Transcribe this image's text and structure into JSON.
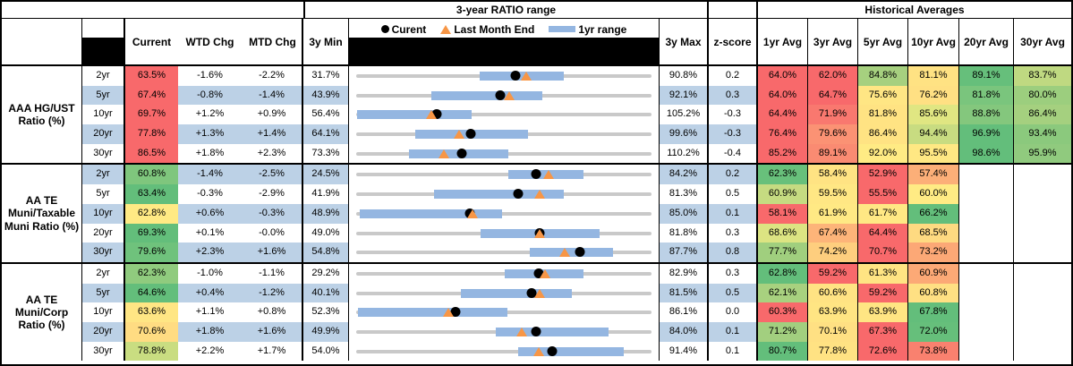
{
  "header": {
    "ratio_range_title": "3-year RATIO range",
    "historical_title": "Historical Averages",
    "col_current": "Current",
    "col_wtd": "WTD Chg",
    "col_mtd": "MTD Chg",
    "col_3y_min": "3y Min",
    "col_3y_max": "3y Max",
    "col_zscore": "z-score",
    "avg_cols": [
      "1yr Avg",
      "3yr Avg",
      "5yr Avg",
      "10yr Avg",
      "20yr Avg",
      "30yr Avg"
    ],
    "legend": {
      "current": "Curent",
      "last_month": "Last Month End",
      "range": "1yr range"
    }
  },
  "colors": {
    "stripe": "#BCD1E6",
    "bar": "#94B6E1",
    "track": "#C9C9C9",
    "marker_triangle": "#F79646",
    "marker_dot": "#000000",
    "heat_red": "#F8696B",
    "heat_yellow": "#FFEB84",
    "heat_green": "#63BE7B"
  },
  "groups": [
    {
      "label": "AAA HG/UST Ratio (%)",
      "rows": [
        {
          "tenor": "2yr",
          "striped": false,
          "current": "63.5%",
          "current_bg": "#F8696B",
          "wtd": "-1.6%",
          "mtd": "-2.2%",
          "min": "31.7%",
          "max": "90.8%",
          "z": "0.2",
          "chart": {
            "min": 31.7,
            "max": 90.8,
            "bar_lo": 56.3,
            "bar_hi": 73.2,
            "current": 63.5,
            "last_month": 65.7
          },
          "avgs": [
            {
              "v": "64.0%",
              "bg": "#F8696B"
            },
            {
              "v": "62.0%",
              "bg": "#F8696B"
            },
            {
              "v": "84.8%",
              "bg": "#A6D07F"
            },
            {
              "v": "81.1%",
              "bg": "#FFE283"
            },
            {
              "v": "89.1%",
              "bg": "#66BF7B"
            },
            {
              "v": "83.7%",
              "bg": "#BFD981"
            }
          ]
        },
        {
          "tenor": "5yr",
          "striped": true,
          "current": "67.4%",
          "current_bg": "#F8696B",
          "wtd": "-0.8%",
          "mtd": "-1.4%",
          "min": "43.9%",
          "max": "92.1%",
          "z": "0.3",
          "chart": {
            "min": 43.9,
            "max": 92.1,
            "bar_lo": 56.1,
            "bar_hi": 74.2,
            "current": 67.4,
            "last_month": 68.8
          },
          "avgs": [
            {
              "v": "64.0%",
              "bg": "#F8696B"
            },
            {
              "v": "64.7%",
              "bg": "#F8696B"
            },
            {
              "v": "75.6%",
              "bg": "#FFE684"
            },
            {
              "v": "76.2%",
              "bg": "#FFE083"
            },
            {
              "v": "81.8%",
              "bg": "#7AC57D"
            },
            {
              "v": "80.0%",
              "bg": "#9CCE7E"
            }
          ]
        },
        {
          "tenor": "10yr",
          "striped": false,
          "current": "69.7%",
          "current_bg": "#F8696B",
          "wtd": "+1.2%",
          "mtd": "+0.9%",
          "min": "56.4%",
          "max": "105.2%",
          "z": "-0.3",
          "chart": {
            "min": 56.4,
            "max": 105.2,
            "bar_lo": 56.5,
            "bar_hi": 75.4,
            "current": 69.7,
            "last_month": 68.8
          },
          "avgs": [
            {
              "v": "64.4%",
              "bg": "#F8696B"
            },
            {
              "v": "71.9%",
              "bg": "#F9786F"
            },
            {
              "v": "81.8%",
              "bg": "#FFE383"
            },
            {
              "v": "85.6%",
              "bg": "#E0E682"
            },
            {
              "v": "88.8%",
              "bg": "#84C77D"
            },
            {
              "v": "86.4%",
              "bg": "#A5D07F"
            }
          ]
        },
        {
          "tenor": "20yr",
          "striped": true,
          "current": "77.8%",
          "current_bg": "#F8696B",
          "wtd": "+1.3%",
          "mtd": "+1.4%",
          "min": "64.1%",
          "max": "99.6%",
          "z": "-0.3",
          "chart": {
            "min": 64.1,
            "max": 99.6,
            "bar_lo": 71.2,
            "bar_hi": 84.7,
            "current": 77.8,
            "last_month": 76.4
          },
          "avgs": [
            {
              "v": "76.4%",
              "bg": "#F8696B"
            },
            {
              "v": "79.6%",
              "bg": "#FB9274"
            },
            {
              "v": "86.4%",
              "bg": "#FFE383"
            },
            {
              "v": "94.4%",
              "bg": "#C8DC81"
            },
            {
              "v": "96.9%",
              "bg": "#63BE7B"
            },
            {
              "v": "93.4%",
              "bg": "#8BC97D"
            }
          ]
        },
        {
          "tenor": "30yr",
          "striped": false,
          "current": "86.5%",
          "current_bg": "#F8696B",
          "wtd": "+1.8%",
          "mtd": "+2.3%",
          "min": "73.3%",
          "max": "110.2%",
          "z": "-0.4",
          "chart": {
            "min": 73.3,
            "max": 110.2,
            "bar_lo": 79.9,
            "bar_hi": 92.2,
            "current": 86.5,
            "last_month": 84.2
          },
          "avgs": [
            {
              "v": "85.2%",
              "bg": "#F8696B"
            },
            {
              "v": "89.1%",
              "bg": "#FA8B72"
            },
            {
              "v": "92.0%",
              "bg": "#FFEB84"
            },
            {
              "v": "95.5%",
              "bg": "#FFE883"
            },
            {
              "v": "98.6%",
              "bg": "#63BE7B"
            },
            {
              "v": "95.9%",
              "bg": "#90CA7E"
            }
          ]
        }
      ]
    },
    {
      "label": "AA TE Muni/Taxable Muni Ratio (%)",
      "rows": [
        {
          "tenor": "2yr",
          "striped": true,
          "current": "60.8%",
          "current_bg": "#7FC67D",
          "wtd": "-1.4%",
          "mtd": "-2.5%",
          "min": "24.5%",
          "max": "84.2%",
          "z": "0.2",
          "chart": {
            "min": 24.5,
            "max": 84.2,
            "bar_lo": 55.1,
            "bar_hi": 70.3,
            "current": 60.8,
            "last_month": 63.3
          },
          "avgs": [
            {
              "v": "62.3%",
              "bg": "#68C07B"
            },
            {
              "v": "58.4%",
              "bg": "#FFE383"
            },
            {
              "v": "52.9%",
              "bg": "#F8696B"
            },
            {
              "v": "57.4%",
              "bg": "#FCAF78"
            },
            {
              "v": "",
              "bg": ""
            },
            {
              "v": "",
              "bg": ""
            }
          ]
        },
        {
          "tenor": "5yr",
          "striped": false,
          "current": "63.4%",
          "current_bg": "#63BE7B",
          "wtd": "-0.3%",
          "mtd": "-2.9%",
          "min": "41.9%",
          "max": "81.3%",
          "z": "0.5",
          "chart": {
            "min": 41.9,
            "max": 81.3,
            "bar_lo": 52.3,
            "bar_hi": 69.5,
            "current": 63.4,
            "last_month": 66.3
          },
          "avgs": [
            {
              "v": "60.9%",
              "bg": "#C5DB81"
            },
            {
              "v": "59.5%",
              "bg": "#FFE784"
            },
            {
              "v": "55.5%",
              "bg": "#F8696B"
            },
            {
              "v": "60.0%",
              "bg": "#FFEB84"
            },
            {
              "v": "",
              "bg": ""
            },
            {
              "v": "",
              "bg": ""
            }
          ]
        },
        {
          "tenor": "10yr",
          "striped": true,
          "current": "62.8%",
          "current_bg": "#FFEA84",
          "wtd": "+0.6%",
          "mtd": "-0.3%",
          "min": "48.9%",
          "max": "85.0%",
          "z": "0.1",
          "chart": {
            "min": 48.9,
            "max": 85.0,
            "bar_lo": 49.3,
            "bar_hi": 66.7,
            "current": 62.8,
            "last_month": 63.1
          },
          "avgs": [
            {
              "v": "58.1%",
              "bg": "#F8696B"
            },
            {
              "v": "61.9%",
              "bg": "#FFE984"
            },
            {
              "v": "61.7%",
              "bg": "#FFE884"
            },
            {
              "v": "66.2%",
              "bg": "#63BE7B"
            },
            {
              "v": "",
              "bg": ""
            },
            {
              "v": "",
              "bg": ""
            }
          ]
        },
        {
          "tenor": "20yr",
          "striped": false,
          "current": "69.3%",
          "current_bg": "#63BE7B",
          "wtd": "+0.1%",
          "mtd": "-0.0%",
          "min": "49.0%",
          "max": "81.8%",
          "z": "0.3",
          "chart": {
            "min": 49.0,
            "max": 81.8,
            "bar_lo": 62.8,
            "bar_hi": 76.0,
            "current": 69.3,
            "last_month": 69.3
          },
          "avgs": [
            {
              "v": "68.6%",
              "bg": "#DCE482"
            },
            {
              "v": "67.4%",
              "bg": "#FDB479"
            },
            {
              "v": "64.4%",
              "bg": "#F8696B"
            },
            {
              "v": "68.5%",
              "bg": "#FEDA81"
            },
            {
              "v": "",
              "bg": ""
            },
            {
              "v": "",
              "bg": ""
            }
          ]
        },
        {
          "tenor": "30yr",
          "striped": true,
          "current": "79.6%",
          "current_bg": "#6FC27C",
          "wtd": "+2.3%",
          "mtd": "+1.6%",
          "min": "54.8%",
          "max": "87.7%",
          "z": "0.8",
          "chart": {
            "min": 54.8,
            "max": 87.7,
            "bar_lo": 74.1,
            "bar_hi": 83.3,
            "current": 79.6,
            "last_month": 78.0
          },
          "avgs": [
            {
              "v": "77.7%",
              "bg": "#A0CF7E"
            },
            {
              "v": "74.2%",
              "bg": "#FECE7E"
            },
            {
              "v": "70.7%",
              "bg": "#F8696B"
            },
            {
              "v": "73.2%",
              "bg": "#FCA876"
            },
            {
              "v": "",
              "bg": ""
            },
            {
              "v": "",
              "bg": ""
            }
          ]
        }
      ]
    },
    {
      "label": "AA TE Muni/Corp Ratio (%)",
      "rows": [
        {
          "tenor": "2yr",
          "striped": false,
          "current": "62.3%",
          "current_bg": "#90CB7E",
          "wtd": "-1.0%",
          "mtd": "-1.1%",
          "min": "29.2%",
          "max": "82.9%",
          "z": "0.3",
          "chart": {
            "min": 29.2,
            "max": 82.9,
            "bar_lo": 56.2,
            "bar_hi": 70.4,
            "current": 62.3,
            "last_month": 63.4
          },
          "avgs": [
            {
              "v": "62.8%",
              "bg": "#63BE7B"
            },
            {
              "v": "59.2%",
              "bg": "#F8696B"
            },
            {
              "v": "61.3%",
              "bg": "#FFE483"
            },
            {
              "v": "60.9%",
              "bg": "#FCA976"
            },
            {
              "v": "",
              "bg": ""
            },
            {
              "v": "",
              "bg": ""
            }
          ]
        },
        {
          "tenor": "5yr",
          "striped": true,
          "current": "64.6%",
          "current_bg": "#63BE7B",
          "wtd": "+0.4%",
          "mtd": "-1.2%",
          "min": "40.1%",
          "max": "81.5%",
          "z": "0.5",
          "chart": {
            "min": 40.1,
            "max": 81.5,
            "bar_lo": 54.7,
            "bar_hi": 70.3,
            "current": 64.6,
            "last_month": 65.8
          },
          "avgs": [
            {
              "v": "62.1%",
              "bg": "#A8D17F"
            },
            {
              "v": "60.6%",
              "bg": "#FFE383"
            },
            {
              "v": "59.2%",
              "bg": "#F8696B"
            },
            {
              "v": "60.8%",
              "bg": "#FFE083"
            },
            {
              "v": "",
              "bg": ""
            },
            {
              "v": "",
              "bg": ""
            }
          ]
        },
        {
          "tenor": "10yr",
          "striped": false,
          "current": "63.6%",
          "current_bg": "#FFE684",
          "wtd": "+1.1%",
          "mtd": "+0.8%",
          "min": "52.3%",
          "max": "86.1%",
          "z": "0.0",
          "chart": {
            "min": 52.3,
            "max": 86.1,
            "bar_lo": 52.5,
            "bar_hi": 69.6,
            "current": 63.6,
            "last_month": 62.8
          },
          "avgs": [
            {
              "v": "60.3%",
              "bg": "#F8696B"
            },
            {
              "v": "63.9%",
              "bg": "#FFE583"
            },
            {
              "v": "63.9%",
              "bg": "#FFE583"
            },
            {
              "v": "67.8%",
              "bg": "#63BE7B"
            },
            {
              "v": "",
              "bg": ""
            },
            {
              "v": "",
              "bg": ""
            }
          ]
        },
        {
          "tenor": "20yr",
          "striped": true,
          "current": "70.6%",
          "current_bg": "#FFDC82",
          "wtd": "+1.8%",
          "mtd": "+1.6%",
          "min": "49.9%",
          "max": "84.0%",
          "z": "0.1",
          "chart": {
            "min": 49.9,
            "max": 84.0,
            "bar_lo": 66.0,
            "bar_hi": 79.0,
            "current": 70.6,
            "last_month": 69.0
          },
          "avgs": [
            {
              "v": "71.2%",
              "bg": "#A2CF7F"
            },
            {
              "v": "70.1%",
              "bg": "#FFE083"
            },
            {
              "v": "67.3%",
              "bg": "#F8696B"
            },
            {
              "v": "72.0%",
              "bg": "#66BF7B"
            },
            {
              "v": "",
              "bg": ""
            },
            {
              "v": "",
              "bg": ""
            }
          ]
        },
        {
          "tenor": "30yr",
          "striped": false,
          "current": "78.8%",
          "current_bg": "#C9DD81",
          "wtd": "+2.2%",
          "mtd": "+1.7%",
          "min": "54.0%",
          "max": "91.4%",
          "z": "0.1",
          "chart": {
            "min": 54.0,
            "max": 91.4,
            "bar_lo": 74.5,
            "bar_hi": 87.8,
            "current": 78.8,
            "last_month": 77.1
          },
          "avgs": [
            {
              "v": "80.7%",
              "bg": "#63BE7B"
            },
            {
              "v": "77.8%",
              "bg": "#FFE283"
            },
            {
              "v": "72.6%",
              "bg": "#F8696B"
            },
            {
              "v": "73.8%",
              "bg": "#F9816F"
            },
            {
              "v": "",
              "bg": ""
            },
            {
              "v": "",
              "bg": ""
            }
          ]
        }
      ]
    }
  ]
}
